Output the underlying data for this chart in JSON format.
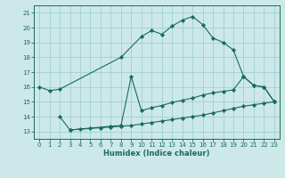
{
  "xlabel": "Humidex (Indice chaleur)",
  "bg_color": "#cce8e8",
  "grid_color": "#99cccc",
  "line_color": "#1a6b5a",
  "xlim": [
    -0.5,
    23.5
  ],
  "ylim": [
    12.5,
    21.5
  ],
  "xticks": [
    0,
    1,
    2,
    3,
    4,
    5,
    6,
    7,
    8,
    9,
    10,
    11,
    12,
    13,
    14,
    15,
    16,
    17,
    18,
    19,
    20,
    21,
    22,
    23
  ],
  "yticks": [
    13,
    14,
    15,
    16,
    17,
    18,
    19,
    20,
    21
  ],
  "line1_x": [
    0,
    1,
    2,
    8,
    10,
    11,
    12,
    13,
    14,
    15,
    16,
    17,
    18,
    19,
    20,
    21,
    22,
    23
  ],
  "line1_y": [
    16.0,
    15.75,
    15.85,
    18.0,
    19.4,
    19.8,
    19.55,
    20.1,
    20.5,
    20.75,
    20.2,
    19.3,
    19.0,
    18.5,
    16.7,
    16.1,
    16.0,
    15.0
  ],
  "line2_x": [
    2,
    3,
    7,
    8,
    9,
    10,
    11,
    12,
    13,
    14,
    15,
    16,
    17,
    18,
    19,
    20,
    21,
    22,
    23
  ],
  "line2_y": [
    14.0,
    13.1,
    13.35,
    13.4,
    16.7,
    14.4,
    14.6,
    14.75,
    14.95,
    15.1,
    15.25,
    15.45,
    15.6,
    15.7,
    15.8,
    16.7,
    16.1,
    16.0,
    15.0
  ],
  "line3_x": [
    3,
    4,
    5,
    6,
    7,
    8,
    9,
    10,
    11,
    12,
    13,
    14,
    15,
    16,
    17,
    18,
    19,
    20,
    21,
    22,
    23
  ],
  "line3_y": [
    13.1,
    13.15,
    13.2,
    13.25,
    13.3,
    13.35,
    13.4,
    13.5,
    13.6,
    13.7,
    13.8,
    13.9,
    14.0,
    14.1,
    14.25,
    14.4,
    14.55,
    14.7,
    14.8,
    14.9,
    15.0
  ]
}
